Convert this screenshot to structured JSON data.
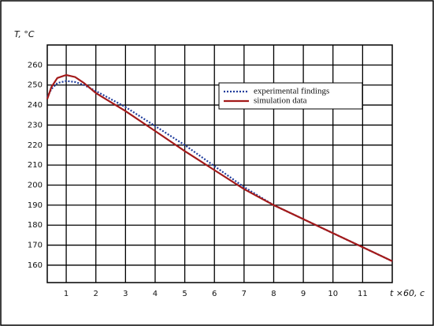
{
  "chart_data": {
    "type": "line",
    "y_label": "T, °C",
    "x_label": "t ×60, c",
    "x": [
      0.36,
      0.5,
      0.7,
      1.0,
      1.3,
      1.6,
      2,
      3,
      4,
      5,
      6,
      7,
      8,
      9,
      10,
      11,
      12
    ],
    "series": [
      {
        "name": "experimental findings",
        "color": "#1f3c9c",
        "line_style": "dotted",
        "values": [
          244,
          248,
          251,
          252,
          251.5,
          250,
          247,
          239,
          229.5,
          220,
          209.5,
          199,
          190,
          183,
          176,
          169,
          162
        ]
      },
      {
        "name": "simulation data",
        "color": "#a31a1a",
        "line_style": "solid",
        "values": [
          243,
          249,
          253.5,
          255,
          254,
          251,
          246,
          237,
          227,
          217,
          207.5,
          198,
          190,
          183,
          176,
          169,
          162
        ]
      }
    ],
    "xlim": [
      0.36,
      12
    ],
    "ylim": [
      151.3,
      270
    ],
    "xticks": [
      1,
      2,
      3,
      4,
      5,
      6,
      7,
      8,
      9,
      10,
      11
    ],
    "yticks": [
      160,
      170,
      180,
      190,
      200,
      210,
      220,
      230,
      240,
      250,
      260
    ],
    "grid": true
  }
}
